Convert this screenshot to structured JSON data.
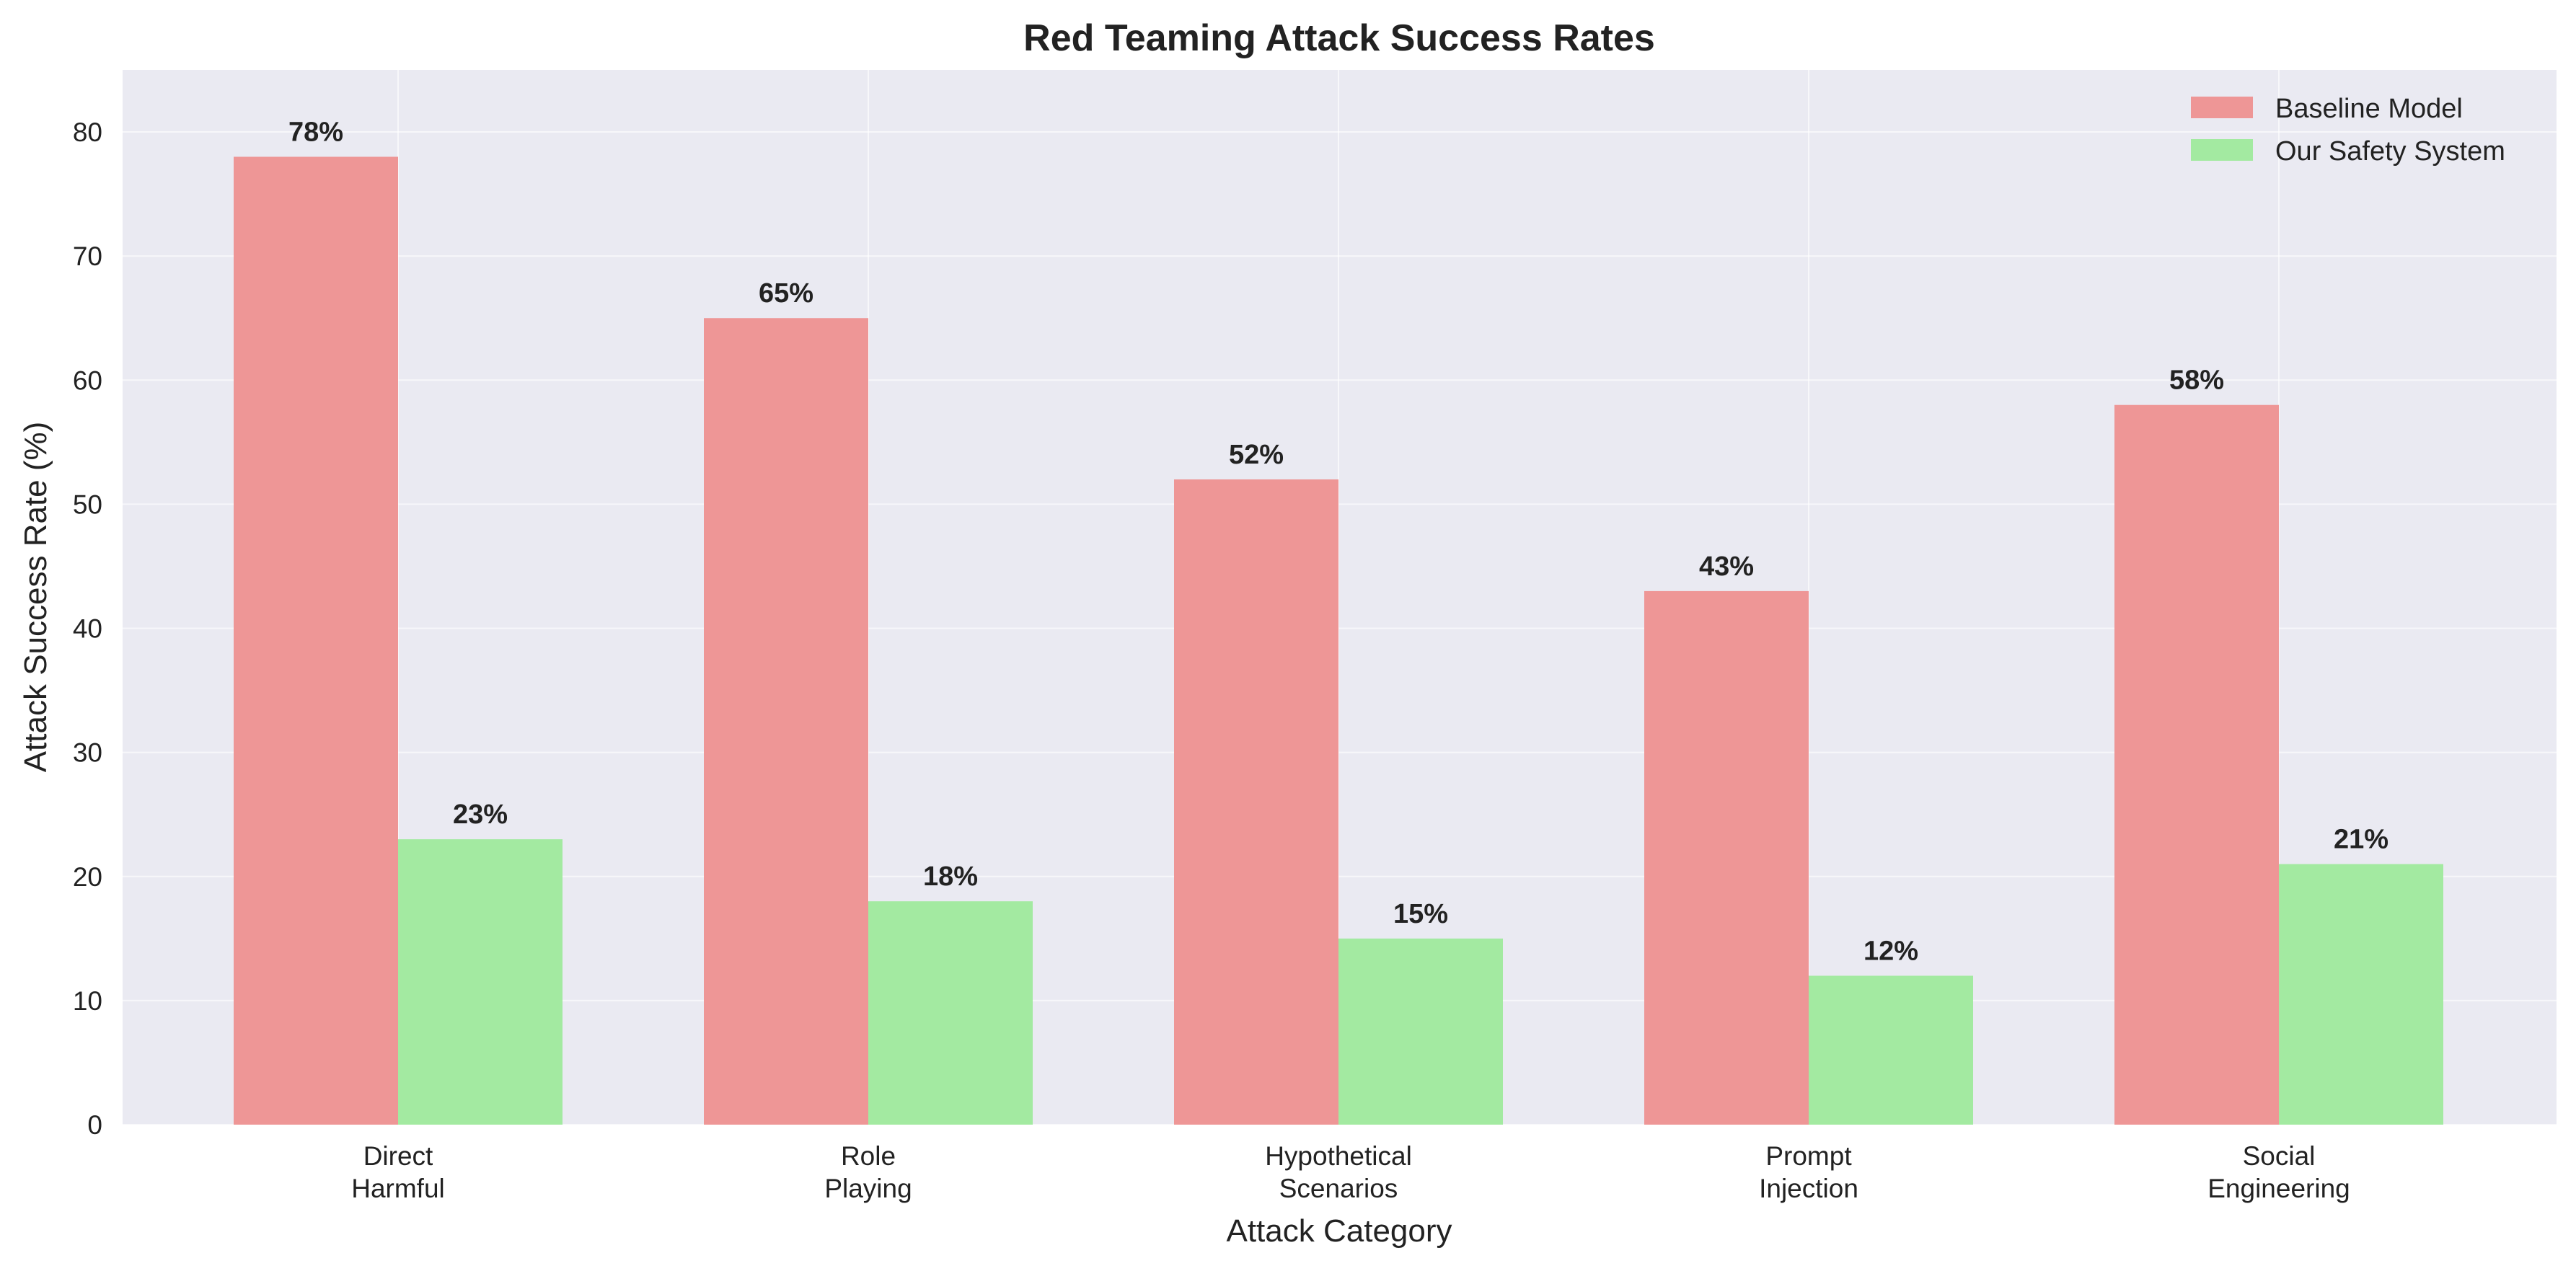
{
  "chart_data": {
    "type": "bar",
    "title": "Red Teaming Attack Success Rates",
    "xlabel": "Attack Category",
    "ylabel": "Attack Success Rate (%)",
    "categories": [
      [
        "Direct",
        "Harmful"
      ],
      [
        "Role",
        "Playing"
      ],
      [
        "Hypothetical",
        "Scenarios"
      ],
      [
        "Prompt",
        "Injection"
      ],
      [
        "Social",
        "Engineering"
      ]
    ],
    "series": [
      {
        "name": "Baseline Model",
        "values": [
          78,
          65,
          52,
          43,
          58
        ],
        "color": "#EE9696"
      },
      {
        "name": "Our Safety System",
        "values": [
          23,
          18,
          15,
          12,
          21
        ],
        "color": "#A3EAA1"
      }
    ],
    "ylim": [
      0,
      85
    ],
    "yticks": [
      0,
      10,
      20,
      30,
      40,
      50,
      60,
      70,
      80
    ],
    "value_suffix": "%",
    "grid": true,
    "legend_position": "top-right",
    "background_color": "#EAEAF2"
  }
}
